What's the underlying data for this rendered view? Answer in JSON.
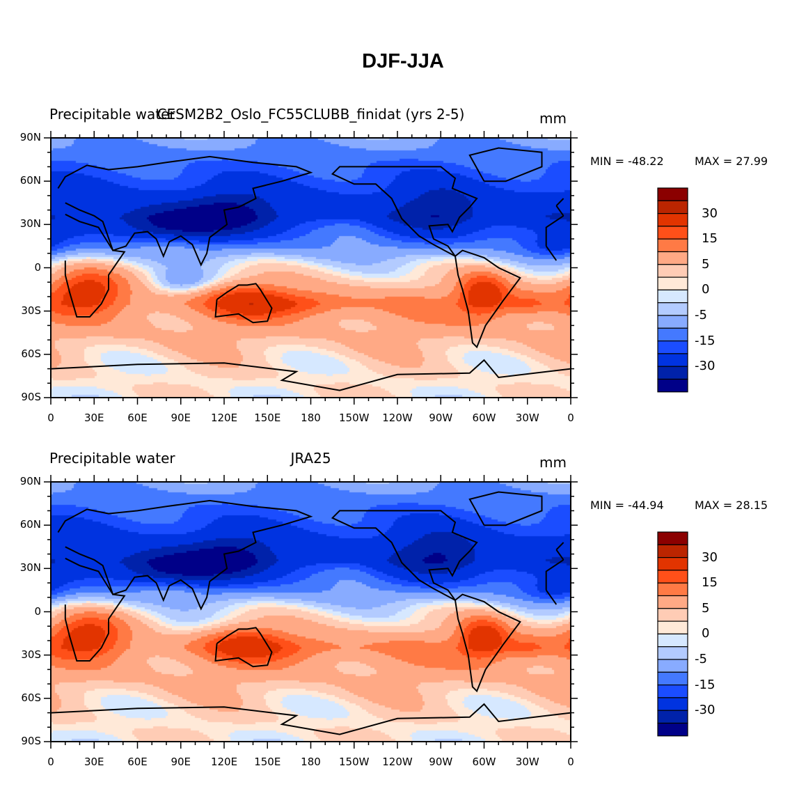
{
  "title": "DJF-JJA",
  "chart_data": [
    {
      "type": "heatmap",
      "left_title": "Precipitable water",
      "center_title": "CESM2B2_Oslo_FC55CLUBB_finidat (yrs 2-5)",
      "right_title": "mm",
      "min_label": "MIN = -48.22",
      "max_label": "MAX =  27.99",
      "min": -48.22,
      "max": 27.99
    },
    {
      "type": "heatmap",
      "left_title": "Precipitable water",
      "center_title": "JRA25",
      "right_title": "mm",
      "min_label": "MIN = -44.94",
      "max_label": "MAX =  28.15",
      "min": -44.94,
      "max": 28.15
    }
  ],
  "axes": {
    "y_ticks": [
      "90N",
      "60N",
      "30N",
      "0",
      "30S",
      "60S",
      "90S"
    ],
    "x_ticks": [
      "0",
      "30E",
      "60E",
      "90E",
      "120E",
      "150E",
      "180",
      "150W",
      "120W",
      "90W",
      "60W",
      "30W",
      "0"
    ],
    "xlim": [
      0,
      360
    ],
    "ylim": [
      -90,
      90
    ]
  },
  "colorbar": {
    "levels": [
      40,
      30,
      20,
      15,
      10,
      5,
      2,
      0,
      -2,
      -5,
      -10,
      -15,
      -20,
      -30,
      -40
    ],
    "labels": [
      "30",
      "15",
      "5",
      "0",
      "-5",
      "-15",
      "-30"
    ],
    "label_levels": [
      30,
      15,
      5,
      0,
      -5,
      -15,
      -30
    ],
    "colors": [
      "#8B0000",
      "#BB2500",
      "#E23400",
      "#FF5019",
      "#FF7A45",
      "#FFA985",
      "#FFCCB5",
      "#FFE9D8",
      "#D6E8FF",
      "#B3CBFF",
      "#88ABFF",
      "#4479FF",
      "#1B4DFF",
      "#0033E0",
      "#0022AA",
      "#000088"
    ]
  }
}
